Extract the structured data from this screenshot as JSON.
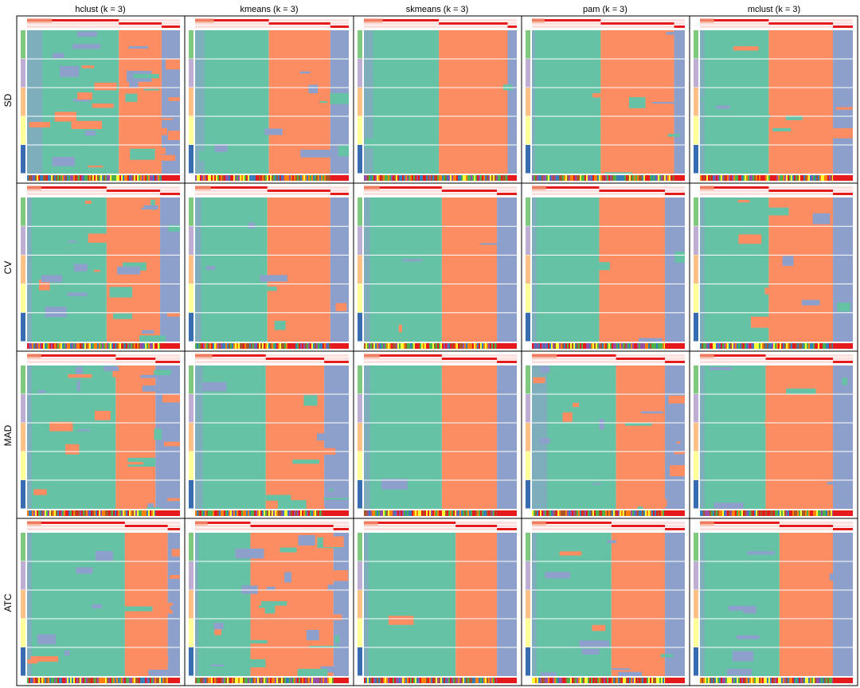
{
  "chart_data": {
    "type": "heatmap",
    "title": "",
    "methods": [
      "hclust (k = 3)",
      "kmeans (k = 3)",
      "skmeans (k = 3)",
      "pam (k = 3)",
      "mclust (k = 3)"
    ],
    "row_labels": [
      "SD",
      "CV",
      "MAD",
      "ATC"
    ],
    "class_colors": [
      "#66C2A5",
      "#FC8D62",
      "#8DA0CB"
    ],
    "partition_groups": 5,
    "partition_group_colors": [
      "#7FC97F",
      "#BEAED4",
      "#FDC086",
      "#FFFF99",
      "#386CB0"
    ],
    "silhouette_color": "#E41A1C",
    "panels": [
      [
        {
          "b": [
            0.1,
            0.6,
            0.88
          ],
          "mess": 0.45
        },
        {
          "b": [
            0.06,
            0.48,
            0.88
          ],
          "mess": 0.12
        },
        {
          "b": [
            0.06,
            0.49,
            0.94
          ],
          "mess": 0.03
        },
        {
          "b": [
            0.02,
            0.45,
            0.93
          ],
          "mess": 0.08
        },
        {
          "b": [
            0.03,
            0.45,
            0.87
          ],
          "mess": 0.1
        }
      ],
      [
        {
          "b": [
            0.03,
            0.52,
            0.87
          ],
          "mess": 0.28
        },
        {
          "b": [
            0.04,
            0.47,
            0.88
          ],
          "mess": 0.08
        },
        {
          "b": [
            0.04,
            0.51,
            0.87
          ],
          "mess": 0.03
        },
        {
          "b": [
            0.03,
            0.44,
            0.87
          ],
          "mess": 0.06
        },
        {
          "b": [
            0.03,
            0.45,
            0.87
          ],
          "mess": 0.1
        }
      ],
      [
        {
          "b": [
            0.03,
            0.58,
            0.84
          ],
          "mess": 0.3
        },
        {
          "b": [
            0.05,
            0.46,
            0.84
          ],
          "mess": 0.15
        },
        {
          "b": [
            0.04,
            0.51,
            0.87
          ],
          "mess": 0.02
        },
        {
          "b": [
            0.1,
            0.55,
            0.87
          ],
          "mess": 0.22
        },
        {
          "b": [
            0.03,
            0.43,
            0.87
          ],
          "mess": 0.08
        }
      ],
      [
        {
          "b": [
            0.03,
            0.64,
            0.92
          ],
          "mess": 0.18
        },
        {
          "b": [
            0.02,
            0.36,
            0.9
          ],
          "mess": 0.35
        },
        {
          "b": [
            0.03,
            0.6,
            0.87
          ],
          "mess": 0.03
        },
        {
          "b": [
            0.03,
            0.52,
            0.87
          ],
          "mess": 0.15
        },
        {
          "b": [
            0.03,
            0.52,
            0.87
          ],
          "mess": 0.1
        }
      ]
    ]
  }
}
